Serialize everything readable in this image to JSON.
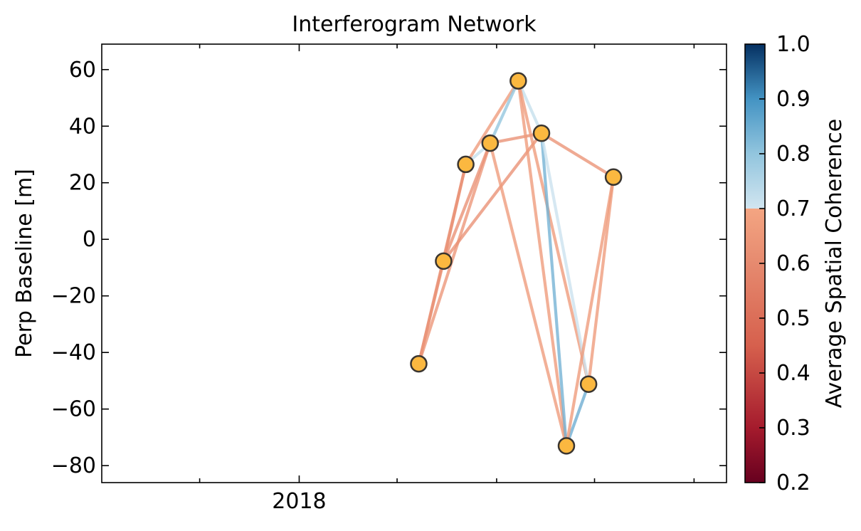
{
  "chart_data": {
    "type": "scatter",
    "title": "Interferogram Network",
    "xlabel": "",
    "ylabel": "Perp Baseline [m]",
    "x_unit": "date",
    "ylim": [
      -86,
      69
    ],
    "xlim": [
      "2017-01-01",
      "2020-03-01"
    ],
    "x_major_ticks": [
      {
        "value": "2018-01-01",
        "label": "2018"
      }
    ],
    "y_ticks": [
      {
        "value": 60,
        "label": "60"
      },
      {
        "value": 40,
        "label": "40"
      },
      {
        "value": 20,
        "label": "20"
      },
      {
        "value": 0,
        "label": "0"
      },
      {
        "value": -20,
        "label": "−20"
      },
      {
        "value": -40,
        "label": "−40"
      },
      {
        "value": -60,
        "label": "−60"
      },
      {
        "value": -80,
        "label": "−80"
      }
    ],
    "grid": false,
    "acquisitions": [
      {
        "id": "a1",
        "date": "2018-08-10",
        "bperp": -44
      },
      {
        "id": "a2",
        "date": "2018-09-25",
        "bperp": -7.7
      },
      {
        "id": "a3",
        "date": "2018-11-05",
        "bperp": 26.5
      },
      {
        "id": "a4",
        "date": "2018-12-20",
        "bperp": 34
      },
      {
        "id": "a5",
        "date": "2019-02-10",
        "bperp": 56
      },
      {
        "id": "a6",
        "date": "2019-03-25",
        "bperp": 37.5
      },
      {
        "id": "a7",
        "date": "2019-05-10",
        "bperp": -73
      },
      {
        "id": "a8",
        "date": "2019-06-20",
        "bperp": -51.2
      },
      {
        "id": "a9",
        "date": "2019-08-05",
        "bperp": 22
      }
    ],
    "pairs": [
      {
        "ref": "a1",
        "sec": "a2",
        "coherence": 0.62
      },
      {
        "ref": "a1",
        "sec": "a3",
        "coherence": 0.62
      },
      {
        "ref": "a1",
        "sec": "a4",
        "coherence": 0.64
      },
      {
        "ref": "a2",
        "sec": "a3",
        "coherence": 0.62
      },
      {
        "ref": "a2",
        "sec": "a4",
        "coherence": 0.62
      },
      {
        "ref": "a2",
        "sec": "a6",
        "coherence": 0.62
      },
      {
        "ref": "a3",
        "sec": "a5",
        "coherence": 0.66
      },
      {
        "ref": "a3",
        "sec": "a4",
        "coherence": 0.72
      },
      {
        "ref": "a4",
        "sec": "a5",
        "coherence": 0.8
      },
      {
        "ref": "a4",
        "sec": "a6",
        "coherence": 0.62
      },
      {
        "ref": "a4",
        "sec": "a7",
        "coherence": 0.66
      },
      {
        "ref": "a5",
        "sec": "a6",
        "coherence": 0.72
      },
      {
        "ref": "a5",
        "sec": "a7",
        "coherence": 0.66
      },
      {
        "ref": "a5",
        "sec": "a8",
        "coherence": 0.66
      },
      {
        "ref": "a6",
        "sec": "a7",
        "coherence": 0.84
      },
      {
        "ref": "a6",
        "sec": "a8",
        "coherence": 0.71
      },
      {
        "ref": "a6",
        "sec": "a9",
        "coherence": 0.63
      },
      {
        "ref": "a7",
        "sec": "a8",
        "coherence": 0.85
      },
      {
        "ref": "a7",
        "sec": "a9",
        "coherence": 0.66
      },
      {
        "ref": "a8",
        "sec": "a9",
        "coherence": 0.66
      }
    ],
    "marker_color": "#fbb840",
    "marker_edge_color": "#3a3530",
    "colorbar": {
      "label": "Average Spatial Coherence",
      "cmap": "RdBu",
      "range": [
        0.2,
        1.0
      ],
      "split_value": 0.7,
      "tick_labels": [
        {
          "value": 0.2,
          "label": "0.2"
        },
        {
          "value": 0.3,
          "label": "0.3"
        },
        {
          "value": 0.4,
          "label": "0.4"
        },
        {
          "value": 0.5,
          "label": "0.5"
        },
        {
          "value": 0.6,
          "label": "0.6"
        },
        {
          "value": 0.7,
          "label": "0.7"
        },
        {
          "value": 0.8,
          "label": "0.8"
        },
        {
          "value": 0.9,
          "label": "0.9"
        },
        {
          "value": 1.0,
          "label": "1.0"
        }
      ],
      "stops": [
        {
          "value": 0.2,
          "color": "#67001f"
        },
        {
          "value": 0.3,
          "color": "#a51b2d"
        },
        {
          "value": 0.45,
          "color": "#d6604d"
        },
        {
          "value": 0.6,
          "color": "#e68a6f"
        },
        {
          "value": 0.7,
          "color": "#f4a582"
        },
        {
          "value": 0.7,
          "color": "#d1e5f0"
        },
        {
          "value": 0.8,
          "color": "#92c5de"
        },
        {
          "value": 0.9,
          "color": "#4393c3"
        },
        {
          "value": 1.0,
          "color": "#053061"
        }
      ]
    }
  }
}
